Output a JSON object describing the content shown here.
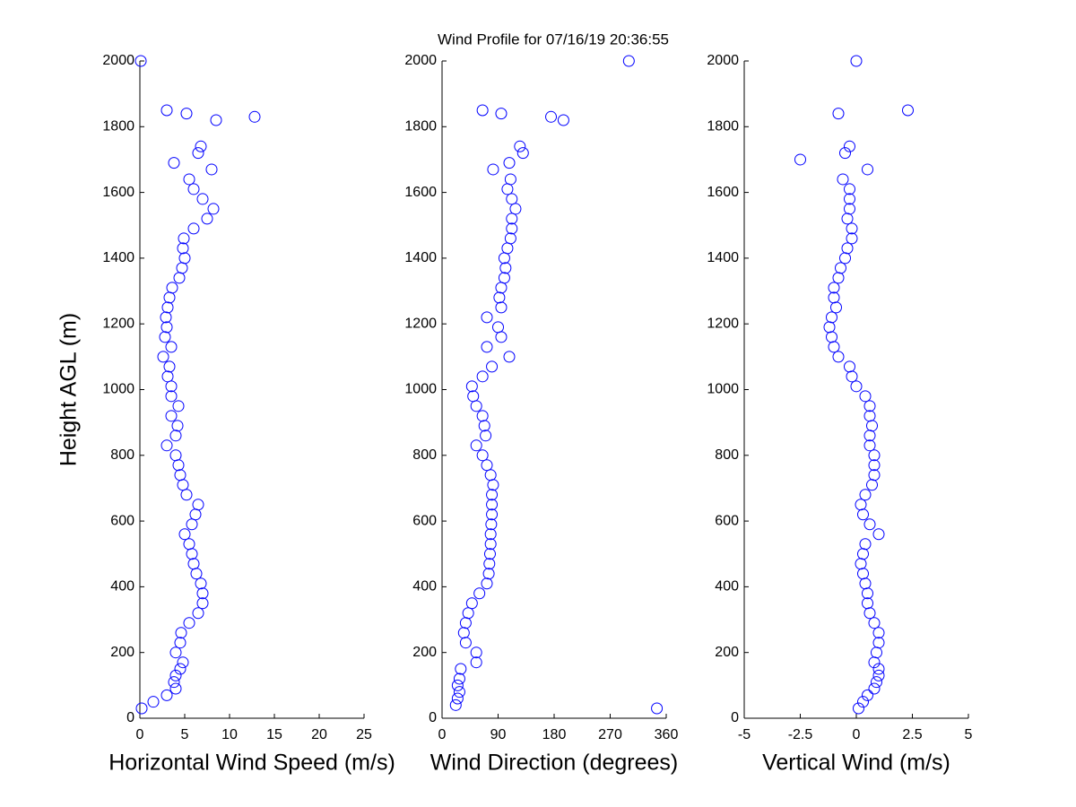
{
  "chart_data": [
    {
      "type": "scatter",
      "title": "Wind Profile for  07/16/19 20:36:55",
      "xlabel": "Horizontal Wind Speed (m/s)",
      "ylabel": "Height AGL (m)",
      "color": "#0000ff",
      "xlim": [
        0,
        25
      ],
      "xticks": [
        0,
        5,
        10,
        15,
        20,
        25
      ],
      "ylim": [
        0,
        2000
      ],
      "yticks": [
        0,
        200,
        400,
        600,
        800,
        1000,
        1200,
        1400,
        1600,
        1800,
        2000
      ],
      "x": [
        0.2,
        1.5,
        3,
        4,
        3.8,
        4.0,
        4.5,
        4.8,
        4,
        4.5,
        4.6,
        5.5,
        6.5,
        7,
        7,
        6.8,
        6.3,
        6,
        5.8,
        5.5,
        5,
        5.8,
        6.2,
        6.5,
        5.2,
        4.8,
        4.5,
        4.3,
        4.0,
        3,
        4,
        4.2,
        3.5,
        4.3,
        3.5,
        3.5,
        3.1,
        3.3,
        2.6,
        3.5,
        2.8,
        3.0,
        2.9,
        3.1,
        3.3,
        3.6,
        4.4,
        4.7,
        5,
        4.8,
        4.9,
        6,
        7.5,
        8.2,
        7,
        6,
        5.5,
        8,
        3.8,
        6.5,
        6.8,
        8.5,
        12.8,
        3,
        5.2,
        0.1
      ],
      "y": [
        30,
        50,
        70,
        90,
        110,
        130,
        150,
        170,
        200,
        230,
        260,
        290,
        320,
        350,
        380,
        410,
        440,
        470,
        500,
        530,
        560,
        590,
        620,
        650,
        680,
        710,
        740,
        770,
        800,
        830,
        860,
        890,
        920,
        950,
        980,
        1010,
        1040,
        1070,
        1100,
        1130,
        1160,
        1190,
        1220,
        1250,
        1280,
        1310,
        1340,
        1370,
        1400,
        1430,
        1460,
        1490,
        1520,
        1550,
        1580,
        1610,
        1640,
        1670,
        1690,
        1720,
        1740,
        1820,
        1830,
        1850,
        1840,
        2000
      ]
    },
    {
      "type": "scatter",
      "xlabel": "Wind Direction (degrees)",
      "color": "#0000ff",
      "xlim": [
        0,
        360
      ],
      "xticks": [
        0,
        90,
        180,
        270,
        360
      ],
      "ylim": [
        0,
        2000
      ],
      "yticks": [
        0,
        200,
        400,
        600,
        800,
        1000,
        1200,
        1400,
        1600,
        1800,
        2000
      ],
      "x": [
        345,
        22,
        25,
        28,
        25,
        28,
        30,
        55,
        55,
        38,
        35,
        38,
        42,
        48,
        60,
        72,
        75,
        76,
        77,
        78,
        78,
        79,
        80,
        80,
        80,
        82,
        78,
        72,
        65,
        55,
        70,
        68,
        65,
        55,
        50,
        48,
        65,
        80,
        108,
        72,
        95,
        90,
        72,
        95,
        92,
        95,
        100,
        102,
        100,
        105,
        110,
        112,
        112,
        118,
        112,
        105,
        110,
        82,
        108,
        130,
        125,
        195,
        175,
        65,
        95,
        300
      ],
      "y": [
        30,
        40,
        60,
        80,
        100,
        120,
        150,
        170,
        200,
        230,
        260,
        290,
        320,
        350,
        380,
        410,
        440,
        470,
        500,
        530,
        560,
        590,
        620,
        650,
        680,
        710,
        740,
        770,
        800,
        830,
        860,
        890,
        920,
        950,
        980,
        1010,
        1040,
        1070,
        1100,
        1130,
        1160,
        1190,
        1220,
        1250,
        1280,
        1310,
        1340,
        1370,
        1400,
        1430,
        1460,
        1490,
        1520,
        1550,
        1580,
        1610,
        1640,
        1670,
        1690,
        1720,
        1740,
        1820,
        1830,
        1850,
        1840,
        2000
      ]
    },
    {
      "type": "scatter",
      "xlabel": "Vertical Wind (m/s)",
      "color": "#0000ff",
      "xlim": [
        -5,
        5
      ],
      "xticks": [
        -5,
        -2.5,
        0,
        2.5,
        5
      ],
      "ylim": [
        0,
        2000
      ],
      "yticks": [
        0,
        200,
        400,
        600,
        800,
        1000,
        1200,
        1400,
        1600,
        1800,
        2000
      ],
      "x": [
        0.1,
        0.3,
        0.5,
        0.8,
        0.9,
        1.0,
        1.0,
        0.8,
        0.9,
        1.0,
        1.0,
        0.8,
        0.6,
        0.5,
        0.5,
        0.4,
        0.3,
        0.2,
        0.3,
        0.4,
        1.0,
        0.6,
        0.3,
        0.2,
        0.4,
        0.7,
        0.8,
        0.8,
        0.8,
        0.6,
        0.6,
        0.7,
        0.6,
        0.6,
        0.4,
        0.0,
        -0.2,
        -0.3,
        -0.8,
        -1.0,
        -1.1,
        -1.2,
        -1.1,
        -0.9,
        -1.0,
        -1.0,
        -0.8,
        -0.7,
        -0.5,
        -0.4,
        -0.2,
        -0.2,
        -0.4,
        -0.3,
        -0.3,
        -0.3,
        -0.6,
        0.5,
        -2.5,
        -0.5,
        -0.3,
        2.3,
        -0.8,
        0
      ],
      "y": [
        30,
        50,
        70,
        90,
        110,
        130,
        150,
        170,
        200,
        230,
        260,
        290,
        320,
        350,
        380,
        410,
        440,
        470,
        500,
        530,
        560,
        590,
        620,
        650,
        680,
        710,
        740,
        770,
        800,
        830,
        860,
        890,
        920,
        950,
        980,
        1010,
        1040,
        1070,
        1100,
        1130,
        1160,
        1190,
        1220,
        1250,
        1280,
        1310,
        1340,
        1370,
        1400,
        1430,
        1460,
        1490,
        1520,
        1550,
        1580,
        1610,
        1640,
        1670,
        1700,
        1720,
        1740,
        1850,
        1840,
        2000
      ]
    }
  ]
}
